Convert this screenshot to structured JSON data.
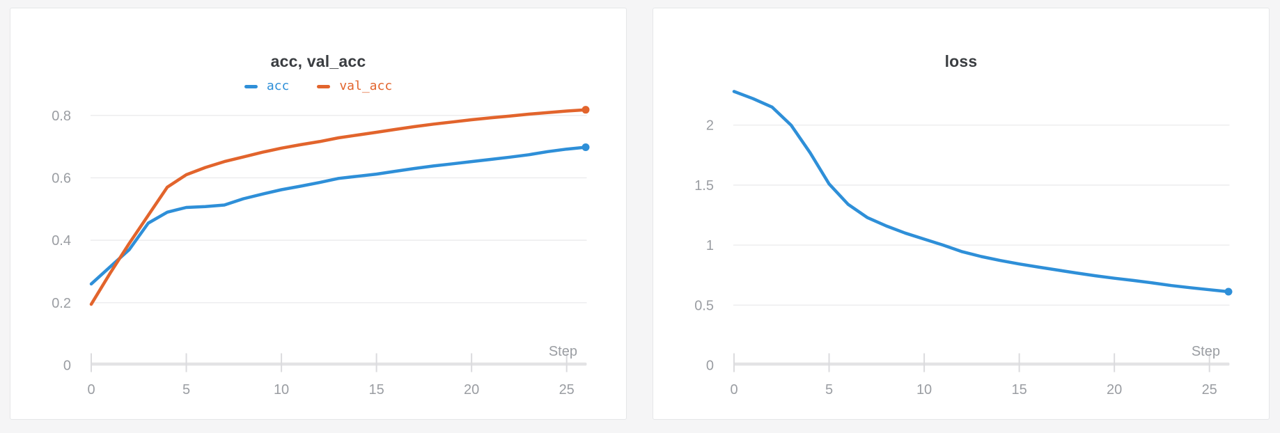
{
  "colors": {
    "page_bg": "#f5f5f6",
    "card_bg": "#ffffff",
    "card_border": "#e5e6e8",
    "title": "#3a3d41",
    "axis_label": "#9a9da2",
    "gridline": "#ececee",
    "axis_line": "#e3e3e5",
    "tick_mark": "#dbdbde",
    "series_blue": "#2e8fd8",
    "series_orange": "#e2642c"
  },
  "panels": [
    {
      "name": "acc-val-acc",
      "show_legend": true
    },
    {
      "name": "loss",
      "show_legend": false
    }
  ],
  "chart_data": [
    {
      "type": "line",
      "title": "acc, val_acc",
      "xlabel": "Step",
      "legend_position": "top-center",
      "grid": "horizontal",
      "x_ticks": [
        0,
        5,
        10,
        15,
        20,
        25
      ],
      "y_ticks": [
        0,
        0.2,
        0.4,
        0.6,
        0.8
      ],
      "xlim": [
        0,
        26
      ],
      "ylim": [
        0,
        0.892
      ],
      "x": [
        0,
        1,
        2,
        3,
        4,
        5,
        6,
        7,
        8,
        9,
        10,
        11,
        12,
        13,
        14,
        15,
        16,
        17,
        18,
        19,
        20,
        21,
        22,
        23,
        24,
        25,
        26
      ],
      "series": [
        {
          "name": "acc",
          "color": "#2e8fd8",
          "values": [
            0.26,
            0.315,
            0.37,
            0.455,
            0.49,
            0.505,
            0.508,
            0.513,
            0.533,
            0.548,
            0.562,
            0.573,
            0.585,
            0.598,
            0.605,
            0.612,
            0.621,
            0.63,
            0.638,
            0.645,
            0.652,
            0.659,
            0.666,
            0.674,
            0.684,
            0.692,
            0.698
          ]
        },
        {
          "name": "val_acc",
          "color": "#e2642c",
          "values": [
            0.195,
            0.295,
            0.39,
            0.48,
            0.57,
            0.61,
            0.633,
            0.652,
            0.667,
            0.682,
            0.695,
            0.706,
            0.716,
            0.728,
            0.737,
            0.746,
            0.755,
            0.764,
            0.772,
            0.779,
            0.786,
            0.792,
            0.798,
            0.804,
            0.809,
            0.814,
            0.818
          ]
        }
      ],
      "end_markers": true
    },
    {
      "type": "line",
      "title": "loss",
      "xlabel": "Step",
      "legend_position": "none",
      "grid": "horizontal",
      "x_ticks": [
        0,
        5,
        10,
        15,
        20,
        25
      ],
      "y_ticks": [
        0,
        0.5,
        1,
        1.5,
        2
      ],
      "xlim": [
        0,
        26
      ],
      "ylim": [
        0,
        2.32
      ],
      "x": [
        0,
        1,
        2,
        3,
        4,
        5,
        6,
        7,
        8,
        9,
        10,
        11,
        12,
        13,
        14,
        15,
        16,
        17,
        18,
        19,
        20,
        21,
        22,
        23,
        24,
        25,
        26
      ],
      "series": [
        {
          "name": "loss",
          "color": "#2e8fd8",
          "values": [
            2.28,
            2.22,
            2.15,
            2.0,
            1.77,
            1.51,
            1.34,
            1.23,
            1.16,
            1.1,
            1.05,
            1.0,
            0.945,
            0.905,
            0.872,
            0.843,
            0.817,
            0.792,
            0.768,
            0.745,
            0.724,
            0.705,
            0.685,
            0.663,
            0.645,
            0.628,
            0.612
          ]
        }
      ],
      "end_markers": true
    }
  ]
}
